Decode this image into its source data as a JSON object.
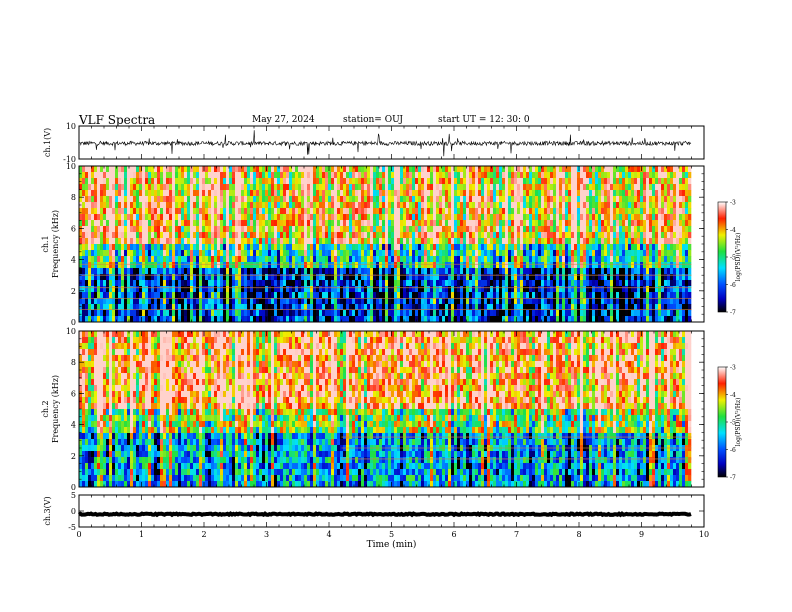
{
  "header": {
    "title": "VLF Spectra",
    "date": "May 27, 2024",
    "station": "station= OUJ",
    "start": "start UT =  12: 30: 0"
  },
  "chart_data": {
    "type": "heatmap",
    "xlabel": "Time (min)",
    "xlim": [
      0,
      10
    ],
    "xticks": [
      "0",
      "1",
      "2",
      "3",
      "4",
      "5",
      "6",
      "7",
      "8",
      "9",
      "10"
    ],
    "data_end_min": 9.8,
    "panels": [
      {
        "id": "ch1_waveform",
        "type": "line",
        "ylabel": "ch.1(V)",
        "ylim": [
          -10,
          10
        ],
        "yticks": [
          "10",
          "-10"
        ],
        "baseline_v": -0.5,
        "noise_amplitude_v": 2.5
      },
      {
        "id": "ch1_spectrogram",
        "type": "heatmap",
        "ylabel": "ch.1 Frequency (kHz)",
        "ylim": [
          0,
          10
        ],
        "yticks": [
          "0",
          "2",
          "4",
          "6",
          "8",
          "10"
        ],
        "colorbar_label": "log(PSD)(V²/Hz)",
        "colorbar_range": [
          -7,
          -3
        ],
        "colorbar_ticks": [
          "-3",
          "-4",
          "-5",
          "-6",
          "-7"
        ],
        "description_low_band_khz": [
          0,
          4
        ],
        "low_band_level": -6.2,
        "high_band_level": -3.8
      },
      {
        "id": "ch2_spectrogram",
        "type": "heatmap",
        "ylabel": "ch.2 Frequency (kHz)",
        "ylim": [
          0,
          10
        ],
        "yticks": [
          "0",
          "2",
          "4",
          "6",
          "8",
          "10"
        ],
        "colorbar_label": "log(PSD)(V²/Hz)",
        "colorbar_range": [
          -7,
          -3
        ],
        "colorbar_ticks": [
          "-3",
          "-4",
          "-5",
          "-6",
          "-7"
        ],
        "low_band_level": -5.5,
        "high_band_level": -3.5
      },
      {
        "id": "ch3_waveform",
        "type": "line",
        "ylabel": "ch.3(V)",
        "ylim": [
          -5,
          5
        ],
        "yticks": [
          "5",
          "0",
          "-5"
        ],
        "baseline_v": -1.0,
        "noise_amplitude_v": 0.2
      }
    ]
  }
}
